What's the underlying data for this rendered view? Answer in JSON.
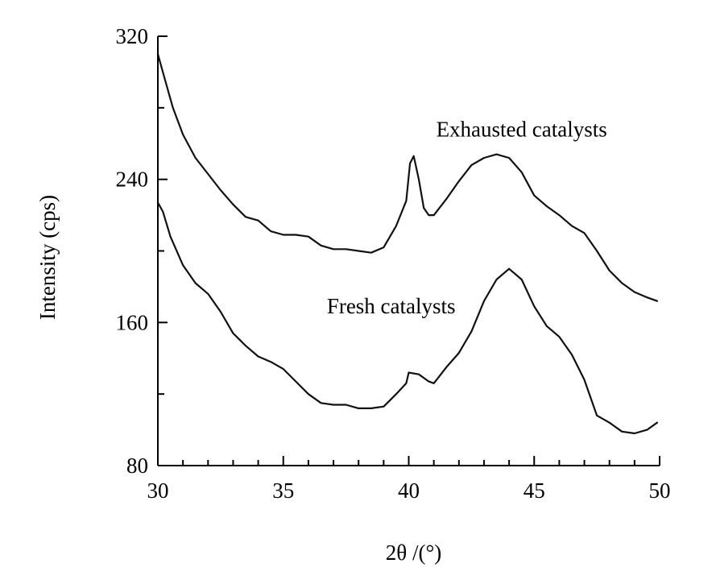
{
  "chart_data": {
    "type": "line",
    "title": "",
    "xlabel": "2θ /(°)",
    "ylabel": "Intensity (cps)",
    "xlim": [
      30,
      50
    ],
    "ylim": [
      80,
      320
    ],
    "xticks": [
      30,
      35,
      40,
      45,
      50
    ],
    "yticks": [
      80,
      160,
      240,
      320
    ],
    "x_minor_step": 1,
    "y_minor_step": 40,
    "grid": false,
    "legend": "none",
    "series": [
      {
        "name": "Exhausted catalysts",
        "color": "#111111",
        "points": [
          [
            30.0,
            310
          ],
          [
            30.3,
            295
          ],
          [
            30.6,
            280
          ],
          [
            31.0,
            265
          ],
          [
            31.5,
            252
          ],
          [
            32.0,
            243
          ],
          [
            32.5,
            234
          ],
          [
            33.0,
            226
          ],
          [
            33.5,
            219
          ],
          [
            34.0,
            217
          ],
          [
            34.5,
            211
          ],
          [
            35.0,
            209
          ],
          [
            35.5,
            209
          ],
          [
            36.0,
            208
          ],
          [
            36.5,
            203
          ],
          [
            37.0,
            201
          ],
          [
            37.5,
            201
          ],
          [
            38.0,
            200
          ],
          [
            38.5,
            199
          ],
          [
            39.0,
            202
          ],
          [
            39.5,
            214
          ],
          [
            39.9,
            228
          ],
          [
            40.05,
            249
          ],
          [
            40.2,
            253
          ],
          [
            40.4,
            240
          ],
          [
            40.6,
            224
          ],
          [
            40.8,
            220
          ],
          [
            41.0,
            220
          ],
          [
            41.5,
            229
          ],
          [
            42.0,
            239
          ],
          [
            42.5,
            248
          ],
          [
            43.0,
            252
          ],
          [
            43.5,
            254
          ],
          [
            44.0,
            252
          ],
          [
            44.5,
            244
          ],
          [
            45.0,
            231
          ],
          [
            45.5,
            225
          ],
          [
            46.0,
            220
          ],
          [
            46.5,
            214
          ],
          [
            47.0,
            210
          ],
          [
            47.5,
            200
          ],
          [
            48.0,
            189
          ],
          [
            48.5,
            182
          ],
          [
            49.0,
            177
          ],
          [
            49.5,
            174
          ],
          [
            49.9,
            172
          ]
        ]
      },
      {
        "name": "Fresh catalysts",
        "color": "#111111",
        "points": [
          [
            30.0,
            227
          ],
          [
            30.2,
            222
          ],
          [
            30.5,
            208
          ],
          [
            31.0,
            192
          ],
          [
            31.5,
            182
          ],
          [
            32.0,
            176
          ],
          [
            32.5,
            166
          ],
          [
            33.0,
            154
          ],
          [
            33.5,
            147
          ],
          [
            34.0,
            141
          ],
          [
            34.5,
            138
          ],
          [
            35.0,
            134
          ],
          [
            35.5,
            127
          ],
          [
            36.0,
            120
          ],
          [
            36.5,
            115
          ],
          [
            37.0,
            114
          ],
          [
            37.5,
            114
          ],
          [
            38.0,
            112
          ],
          [
            38.5,
            112
          ],
          [
            39.0,
            113
          ],
          [
            39.5,
            120
          ],
          [
            39.9,
            126
          ],
          [
            40.0,
            132
          ],
          [
            40.4,
            131
          ],
          [
            40.8,
            127
          ],
          [
            41.0,
            126
          ],
          [
            41.5,
            135
          ],
          [
            42.0,
            143
          ],
          [
            42.5,
            155
          ],
          [
            43.0,
            172
          ],
          [
            43.5,
            184
          ],
          [
            44.0,
            190
          ],
          [
            44.5,
            184
          ],
          [
            45.0,
            169
          ],
          [
            45.5,
            158
          ],
          [
            46.0,
            152
          ],
          [
            46.5,
            142
          ],
          [
            47.0,
            128
          ],
          [
            47.5,
            108
          ],
          [
            48.0,
            104
          ],
          [
            48.5,
            99
          ],
          [
            49.0,
            98
          ],
          [
            49.5,
            100
          ],
          [
            49.9,
            104
          ]
        ]
      }
    ],
    "annotations": [
      {
        "text": "Exhausted catalysts",
        "x": 44.5,
        "y": 264
      },
      {
        "text": "Fresh catalysts",
        "x": 39.3,
        "y": 165
      }
    ]
  }
}
